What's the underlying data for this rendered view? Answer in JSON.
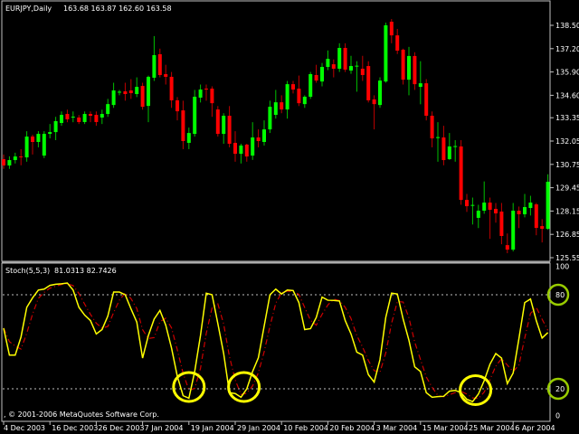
{
  "header": {
    "symbol_label": "EURJPY,Daily",
    "ohlc_label": "163.68 163.87 162.60 163.58"
  },
  "indicator": {
    "label": "Stoch(5,5,3)",
    "values_label": "81.0313 82.7426",
    "signal_period": 3
  },
  "copyright": ", © 2001-2006 MetaQuotes Software Corp.",
  "colors": {
    "background": "#000000",
    "bull": "#00ff00",
    "bear": "#ff0000",
    "stoch_main": "#ffff00",
    "stoch_signal": "#cc0000",
    "level_lines": "#c0c0c0",
    "highlight_circles": "#ffff00",
    "axis_circles": "#99cc00"
  },
  "chart_data": [
    {
      "type": "candlestick",
      "title": "EURJPY,Daily",
      "ylim": [
        125.55,
        138.5
      ],
      "y_ticks": [
        "138.50",
        "137.20",
        "135.90",
        "134.60",
        "133.35",
        "132.05",
        "130.75",
        "129.45",
        "128.15",
        "126.85",
        "125.55"
      ],
      "y_tick_values": [
        138.5,
        137.2,
        135.9,
        134.6,
        133.35,
        132.05,
        130.75,
        129.45,
        128.15,
        126.85,
        125.55
      ],
      "x_tick_labels": [
        "4 Dec 2003",
        "16 Dec 2003",
        "26 Dec 2003",
        "7 Jan 2004",
        "19 Jan 2004",
        "29 Jan 2004",
        "10 Feb 2004",
        "20 Feb 2004",
        "3 Mar 2004",
        "15 Mar 2004",
        "25 Mar 2004",
        "6 Apr 2004"
      ],
      "x_tick_bar_index": [
        0,
        8,
        16,
        24,
        32,
        40,
        48,
        56,
        64,
        72,
        80,
        88
      ],
      "ohlc": [
        [
          131.04,
          131.3,
          130.5,
          130.69
        ],
        [
          130.69,
          131.2,
          130.5,
          130.99
        ],
        [
          130.99,
          131.4,
          130.8,
          131.19
        ],
        [
          131.19,
          131.6,
          130.7,
          131.14
        ],
        [
          131.14,
          132.6,
          130.9,
          132.3
        ],
        [
          132.3,
          132.4,
          131.3,
          132.0
        ],
        [
          132.0,
          132.6,
          131.7,
          132.45
        ],
        [
          131.24,
          132.6,
          131.1,
          132.45
        ],
        [
          132.45,
          133.0,
          132.2,
          132.55
        ],
        [
          132.55,
          133.4,
          132.1,
          133.16
        ],
        [
          133.06,
          133.7,
          132.9,
          133.51
        ],
        [
          133.56,
          133.8,
          133.1,
          133.26
        ],
        [
          133.41,
          133.7,
          133.1,
          133.41
        ],
        [
          133.36,
          133.5,
          133.0,
          133.11
        ],
        [
          133.11,
          133.7,
          133.0,
          133.56
        ],
        [
          133.56,
          133.7,
          133.1,
          133.46
        ],
        [
          133.51,
          133.7,
          132.9,
          133.11
        ],
        [
          133.36,
          133.8,
          133.0,
          133.56
        ],
        [
          133.56,
          134.4,
          133.4,
          134.11
        ],
        [
          134.06,
          135.3,
          133.9,
          134.87
        ],
        [
          134.77,
          134.9,
          134.6,
          134.8
        ],
        [
          134.82,
          135.3,
          134.3,
          134.67
        ],
        [
          134.87,
          135.5,
          134.4,
          134.72
        ],
        [
          134.67,
          135.6,
          134.5,
          135.07
        ],
        [
          135.12,
          135.3,
          133.8,
          133.96
        ],
        [
          134.01,
          135.7,
          133.1,
          135.63
        ],
        [
          135.58,
          137.9,
          135.4,
          136.84
        ],
        [
          136.89,
          137.2,
          135.6,
          135.73
        ],
        [
          135.78,
          136.3,
          135.2,
          135.63
        ],
        [
          135.63,
          135.9,
          133.9,
          134.32
        ],
        [
          134.32,
          134.5,
          133.2,
          133.71
        ],
        [
          133.76,
          134.3,
          131.6,
          132.05
        ],
        [
          131.95,
          132.8,
          131.6,
          132.5
        ],
        [
          132.45,
          134.9,
          132.3,
          134.52
        ],
        [
          134.47,
          135.2,
          134.2,
          134.92
        ],
        [
          134.97,
          135.2,
          134.3,
          134.92
        ],
        [
          134.97,
          135.1,
          133.4,
          134.16
        ],
        [
          133.81,
          134.0,
          132.3,
          132.45
        ],
        [
          132.45,
          133.6,
          131.9,
          133.46
        ],
        [
          133.46,
          134.0,
          131.7,
          131.9
        ],
        [
          131.95,
          132.6,
          130.9,
          131.34
        ],
        [
          131.34,
          131.9,
          130.8,
          131.8
        ],
        [
          131.85,
          131.9,
          130.9,
          131.19
        ],
        [
          131.24,
          133.1,
          131.0,
          132.25
        ],
        [
          132.25,
          132.7,
          131.7,
          132.05
        ],
        [
          132.0,
          133.2,
          131.8,
          132.7
        ],
        [
          132.7,
          134.3,
          132.5,
          133.96
        ],
        [
          133.51,
          134.9,
          133.3,
          134.21
        ],
        [
          134.21,
          134.6,
          133.6,
          133.81
        ],
        [
          133.81,
          135.4,
          133.3,
          135.22
        ],
        [
          135.22,
          135.4,
          134.7,
          134.92
        ],
        [
          134.97,
          135.7,
          134.0,
          134.16
        ],
        [
          134.11,
          134.6,
          133.9,
          134.52
        ],
        [
          134.52,
          135.9,
          134.4,
          135.78
        ],
        [
          135.73,
          136.3,
          135.3,
          135.42
        ],
        [
          135.37,
          136.4,
          135.1,
          136.18
        ],
        [
          136.18,
          137.1,
          136.0,
          136.63
        ],
        [
          136.33,
          136.6,
          135.6,
          136.08
        ],
        [
          136.08,
          137.5,
          135.9,
          137.24
        ],
        [
          137.24,
          137.5,
          135.9,
          136.03
        ],
        [
          135.98,
          136.8,
          135.8,
          136.23
        ],
        [
          136.23,
          136.5,
          134.8,
          136.25
        ],
        [
          136.08,
          136.8,
          135.4,
          135.73
        ],
        [
          136.23,
          136.5,
          134.2,
          134.32
        ],
        [
          134.37,
          134.6,
          132.7,
          134.11
        ],
        [
          134.06,
          135.6,
          133.9,
          135.42
        ],
        [
          135.37,
          138.65,
          135.3,
          138.5
        ],
        [
          138.7,
          138.85,
          137.5,
          137.94
        ],
        [
          137.94,
          138.3,
          136.9,
          137.09
        ],
        [
          137.14,
          137.2,
          135.2,
          135.47
        ],
        [
          135.47,
          137.3,
          134.6,
          136.79
        ],
        [
          136.79,
          137.0,
          134.9,
          135.22
        ],
        [
          135.07,
          136.5,
          134.1,
          135.27
        ],
        [
          135.27,
          135.5,
          133.2,
          133.46
        ],
        [
          133.46,
          133.7,
          131.7,
          132.2
        ],
        [
          132.25,
          133.1,
          130.9,
          132.27
        ],
        [
          132.25,
          132.9,
          130.7,
          130.99
        ],
        [
          131.04,
          132.5,
          131.0,
          131.75
        ],
        [
          131.75,
          132.1,
          130.9,
          131.77
        ],
        [
          131.75,
          132.1,
          128.5,
          128.77
        ],
        [
          128.77,
          129.1,
          128.1,
          128.42
        ],
        [
          128.47,
          128.9,
          127.4,
          128.49
        ],
        [
          127.77,
          128.5,
          127.2,
          128.17
        ],
        [
          128.17,
          129.8,
          128.0,
          128.62
        ],
        [
          128.62,
          128.9,
          126.6,
          128.22
        ],
        [
          128.27,
          128.6,
          127.5,
          128.02
        ],
        [
          128.12,
          128.6,
          126.3,
          126.76
        ],
        [
          126.25,
          126.9,
          125.8,
          126.0
        ],
        [
          126.0,
          128.6,
          125.9,
          128.17
        ],
        [
          128.17,
          128.4,
          127.2,
          127.97
        ],
        [
          127.97,
          129.1,
          127.8,
          128.37
        ],
        [
          128.32,
          129.0,
          127.9,
          128.62
        ],
        [
          128.52,
          128.6,
          126.8,
          127.21
        ],
        [
          127.31,
          127.7,
          126.4,
          127.16
        ],
        [
          127.16,
          130.2,
          127.1,
          129.78
        ]
      ]
    },
    {
      "type": "line",
      "title": "Stoch(5,5,3)",
      "ylim": [
        0,
        100
      ],
      "y_ticks": [
        "100",
        "80",
        "20",
        "0"
      ],
      "y_tick_values": [
        100,
        80,
        20,
        0
      ],
      "levels": [
        80,
        20
      ],
      "series": [
        {
          "k": [
            58.7,
            41.5,
            41.5,
            53,
            72,
            78,
            83,
            83.6,
            86,
            86.7,
            87,
            87.5,
            83,
            72,
            67,
            63.5,
            55,
            57.8,
            66.4,
            81.7,
            81.7,
            80,
            71,
            62.6,
            39.6,
            54,
            64.5,
            70,
            60.6,
            46,
            28,
            15.6,
            14,
            31,
            54,
            81,
            80,
            61.6,
            42.6,
            17.5,
            17,
            14.6,
            20,
            31,
            39.8,
            60,
            80,
            83.6,
            80.5,
            83,
            82.7,
            75,
            57.8,
            58.4,
            65.5,
            78.5,
            76.5,
            76.4,
            76,
            63.5,
            55,
            43.4,
            41.5,
            29,
            24.3,
            38.6,
            65.5,
            81,
            80.5,
            64.5,
            51,
            34,
            31,
            17.5,
            14.6,
            15,
            15.2,
            18.5,
            19,
            17.5,
            13.3,
            11.8,
            16.6,
            25.2,
            35.7,
            42.5,
            39.6,
            23.3,
            30,
            52,
            75,
            77.3,
            63.5,
            52.4,
            55.9
          ]
        }
      ],
      "annotations": [
        {
          "shape": "circle",
          "bar_index": 32,
          "value": 20,
          "axis": "price"
        },
        {
          "shape": "circle",
          "bar_index": 41.5,
          "value": 20,
          "axis": "price"
        },
        {
          "shape": "circle",
          "bar_index": 81.5,
          "value": 18,
          "axis": "price"
        },
        {
          "shape": "circle",
          "label": "80",
          "on": "axis"
        },
        {
          "shape": "circle",
          "label": "20",
          "on": "axis"
        }
      ]
    }
  ]
}
